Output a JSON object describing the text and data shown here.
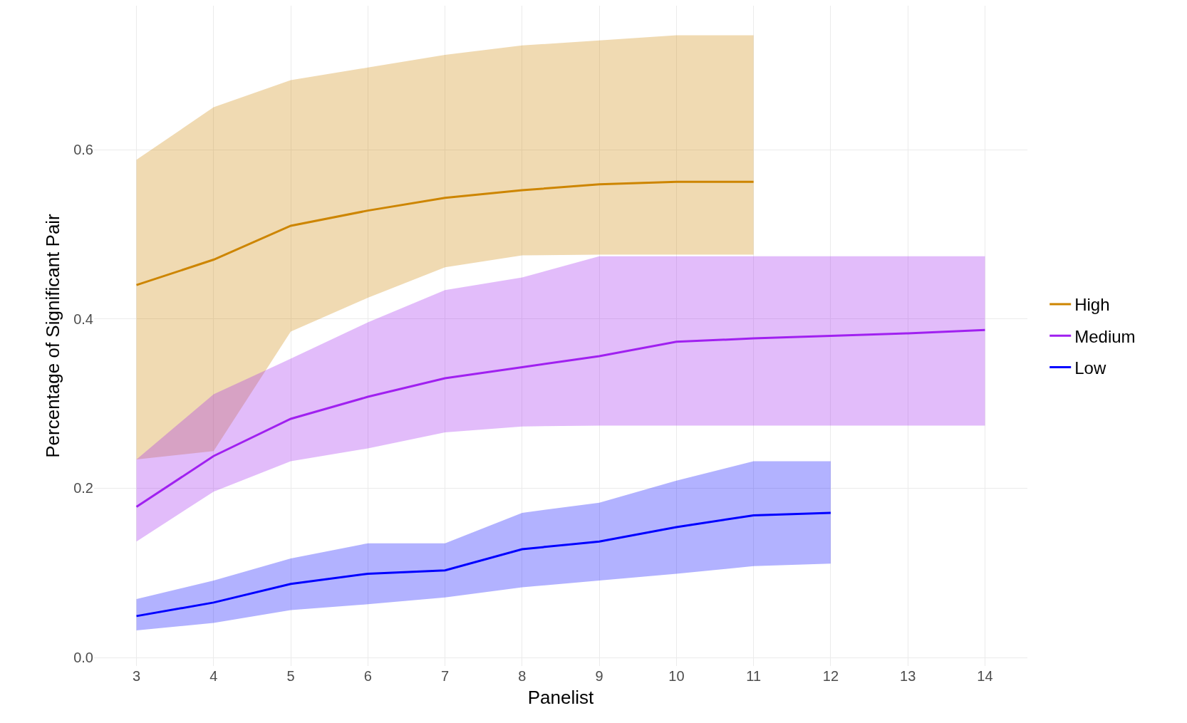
{
  "chart_data": {
    "type": "line",
    "xlabel": "Panelist",
    "ylabel": "Percentage of Significant Pair",
    "xlim": [
      2.45,
      14.55
    ],
    "xticks": [
      3,
      4,
      5,
      6,
      7,
      8,
      9,
      10,
      11,
      12,
      13,
      14
    ],
    "ylim": [
      -0.01,
      0.77
    ],
    "yticks": [
      {
        "value": 0,
        "label": "0.0"
      },
      0.2,
      0.4,
      0.6
    ],
    "grid": true,
    "legend": "right",
    "series": [
      {
        "name": "High",
        "color": "#cd8500",
        "x": [
          3,
          4,
          5,
          6,
          7,
          8,
          9,
          10,
          11
        ],
        "values": [
          0.44,
          0.47,
          0.51,
          0.528,
          0.543,
          0.552,
          0.559,
          0.562,
          0.562
        ],
        "lower": [
          0.234,
          0.244,
          0.385,
          0.425,
          0.461,
          0.475,
          0.476,
          0.476,
          0.476
        ],
        "upper": [
          0.588,
          0.65,
          0.682,
          0.697,
          0.712,
          0.723,
          0.729,
          0.735,
          0.735
        ]
      },
      {
        "name": "Medium",
        "color": "#a020f0",
        "x": [
          3,
          4,
          5,
          6,
          7,
          8,
          9,
          10,
          11,
          12,
          13,
          14
        ],
        "values": [
          0.178,
          0.238,
          0.282,
          0.308,
          0.33,
          0.343,
          0.356,
          0.373,
          0.377,
          0.38,
          0.383,
          0.387
        ],
        "lower": [
          0.137,
          0.196,
          0.232,
          0.247,
          0.266,
          0.273,
          0.274,
          0.274,
          0.274,
          0.274,
          0.274,
          0.274
        ],
        "upper": [
          0.234,
          0.311,
          0.353,
          0.396,
          0.434,
          0.449,
          0.474,
          0.474,
          0.474,
          0.474,
          0.474,
          0.474
        ]
      },
      {
        "name": "Low",
        "color": "#0000ff",
        "x": [
          3,
          4,
          5,
          6,
          7,
          8,
          9,
          10,
          11,
          12
        ],
        "values": [
          0.049,
          0.065,
          0.087,
          0.099,
          0.103,
          0.128,
          0.137,
          0.154,
          0.168,
          0.171
        ],
        "lower": [
          0.032,
          0.041,
          0.056,
          0.063,
          0.071,
          0.083,
          0.091,
          0.099,
          0.108,
          0.111
        ],
        "upper": [
          0.069,
          0.091,
          0.117,
          0.135,
          0.135,
          0.171,
          0.183,
          0.209,
          0.232,
          0.232
        ]
      }
    ]
  }
}
